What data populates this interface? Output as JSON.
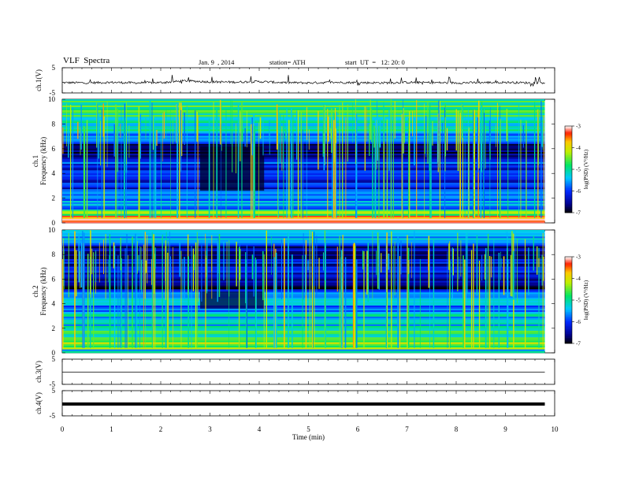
{
  "header": {
    "title": "VLF  Spectra",
    "date": "Jan. 9  , 2014",
    "station": "station= ATH",
    "start": "start  UT  =   12: 20: 0"
  },
  "chart_data": [
    {
      "type": "line",
      "panel": "ch1-waveform",
      "ylabel": "ch.1(V)",
      "ylim": [
        -5,
        5
      ],
      "yticks": [
        "5",
        "-5"
      ],
      "x": [
        0,
        0.5,
        1,
        1.5,
        2,
        2.5,
        3,
        3.5,
        4,
        4.5,
        5,
        5.5,
        6,
        6.5,
        7,
        7.5,
        8,
        8.5,
        9,
        9.5,
        9.8
      ],
      "values": [
        -0.9,
        -1.0,
        -0.8,
        -1.0,
        -0.9,
        -0.2,
        -0.6,
        -0.7,
        -0.5,
        -0.9,
        -1.0,
        -0.8,
        -0.9,
        -1.0,
        -0.8,
        -0.9,
        -1.0,
        -0.9,
        -0.8,
        -1.0,
        -0.9
      ]
    },
    {
      "type": "heatmap",
      "panel": "ch1-spectrogram",
      "ylabel_lines": [
        "ch.1",
        "Frequency  (kHz)"
      ],
      "ylim": [
        0,
        10
      ],
      "yticks": [
        "0",
        "2",
        "4",
        "6",
        "8",
        "10"
      ],
      "time_end_min": 9.8,
      "colorbar": {
        "label": "log(PSD) (V²/Hz)",
        "range": [
          -7,
          -3
        ],
        "ticks": [
          "-3",
          "-4",
          "-5",
          "-6",
          "-7"
        ]
      },
      "bands": [
        {
          "f": [
            0.0,
            0.2
          ],
          "v": -3.2
        },
        {
          "f": [
            0.2,
            0.6
          ],
          "v": -3.4
        },
        {
          "f": [
            0.6,
            1.1
          ],
          "v": -4.6
        },
        {
          "f": [
            1.1,
            1.8
          ],
          "v": -5.5
        },
        {
          "f": [
            1.8,
            2.6
          ],
          "v": -5.9
        },
        {
          "f": [
            2.6,
            3.5
          ],
          "v": -6.2
        },
        {
          "f": [
            3.5,
            4.5
          ],
          "v": -6.3
        },
        {
          "f": [
            4.5,
            5.2
          ],
          "v": -6.0
        },
        {
          "f": [
            5.2,
            6.4
          ],
          "v": -6.6
        },
        {
          "f": [
            6.4,
            7.3
          ],
          "v": -5.6
        },
        {
          "f": [
            7.3,
            8.6
          ],
          "v": -5.2
        },
        {
          "f": [
            8.6,
            10.0
          ],
          "v": -4.8
        }
      ],
      "quiet_window": {
        "t": [
          2.8,
          4.1
        ],
        "f": [
          2.6,
          6.2
        ],
        "v": -6.9
      }
    },
    {
      "type": "heatmap",
      "panel": "ch2-spectrogram",
      "ylabel_lines": [
        "ch.2",
        "Frequency  (kHz)"
      ],
      "ylim": [
        0,
        10
      ],
      "yticks": [
        "0",
        "2",
        "4",
        "6",
        "8",
        "10"
      ],
      "time_end_min": 9.8,
      "colorbar": {
        "label": "log(PSD) (V²/Hz)",
        "range": [
          -7,
          -3
        ],
        "ticks": [
          "-3",
          "-4",
          "-5",
          "-6",
          "-7"
        ]
      },
      "bands": [
        {
          "f": [
            0.0,
            0.3
          ],
          "v": -5.4
        },
        {
          "f": [
            0.3,
            1.0
          ],
          "v": -4.4
        },
        {
          "f": [
            1.0,
            2.2
          ],
          "v": -4.9
        },
        {
          "f": [
            2.2,
            3.2
          ],
          "v": -5.3
        },
        {
          "f": [
            3.2,
            4.5
          ],
          "v": -5.6
        },
        {
          "f": [
            4.5,
            5.2
          ],
          "v": -5.9
        },
        {
          "f": [
            5.2,
            6.4
          ],
          "v": -6.6
        },
        {
          "f": [
            6.4,
            7.5
          ],
          "v": -6.3
        },
        {
          "f": [
            7.5,
            8.8
          ],
          "v": -6.5
        },
        {
          "f": [
            8.8,
            10.0
          ],
          "v": -5.6
        }
      ],
      "quiet_window": {
        "t": [
          2.8,
          4.1
        ],
        "f": [
          3.6,
          5.0
        ],
        "v": -6.8
      }
    },
    {
      "type": "line",
      "panel": "ch3-waveform",
      "ylabel": "ch.3(V)",
      "ylim": [
        -5,
        5
      ],
      "yticks": [
        "5",
        "-5"
      ],
      "x": [
        0,
        9.8
      ],
      "values": [
        -0.2,
        -0.2
      ]
    },
    {
      "type": "line",
      "panel": "ch4-waveform",
      "ylabel": "ch.4(V)",
      "ylim": [
        -5,
        5
      ],
      "yticks": [
        "5",
        "-5"
      ],
      "x": [
        0,
        9.8
      ],
      "values": [
        -0.3,
        -0.3
      ]
    }
  ],
  "xaxis": {
    "label": "Time  (min)",
    "ticks": [
      "0",
      "1",
      "2",
      "3",
      "4",
      "5",
      "6",
      "7",
      "8",
      "9",
      "10"
    ]
  }
}
